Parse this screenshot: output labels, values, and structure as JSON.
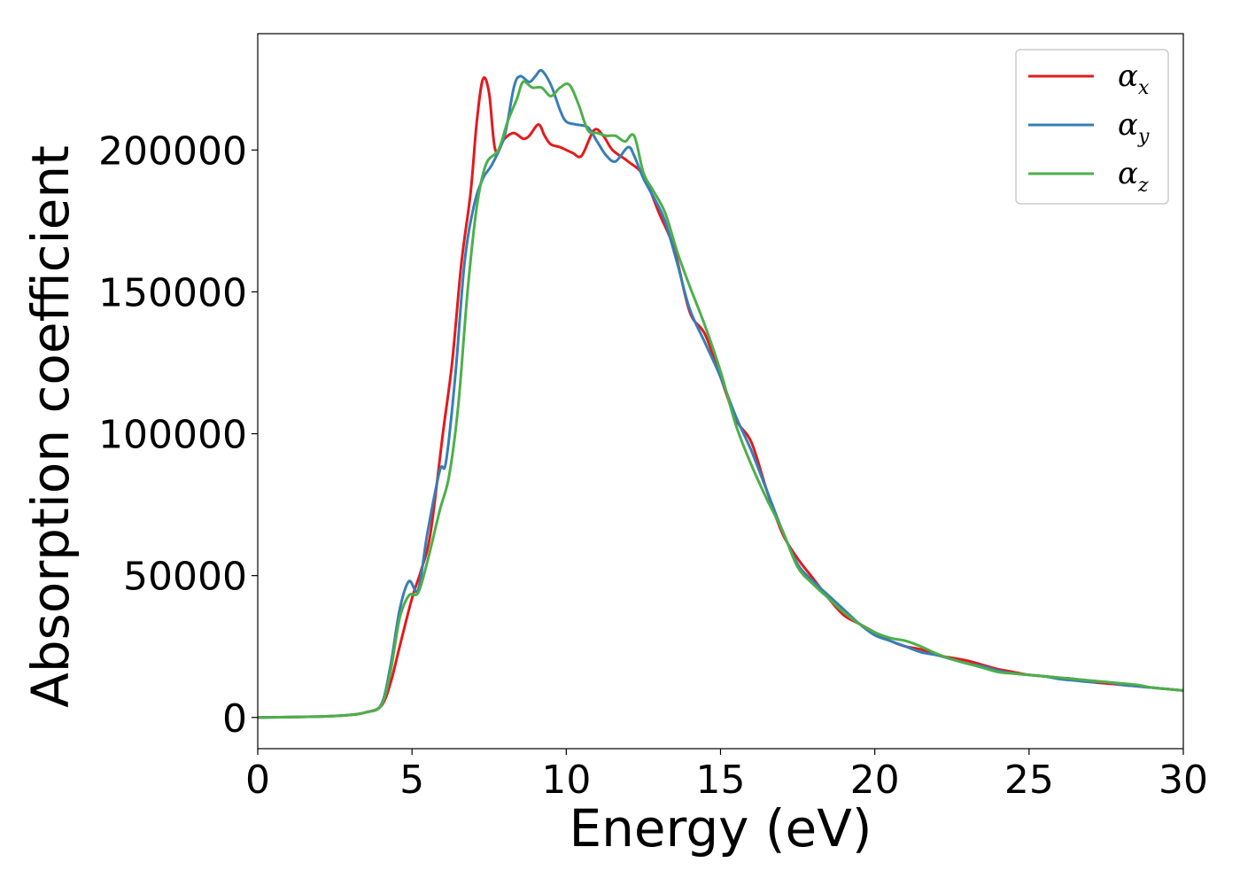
{
  "chart_data": {
    "type": "line",
    "xlabel": "Energy (eV)",
    "ylabel": "Absorption coefficient",
    "xlim": [
      0,
      30
    ],
    "ylim": [
      -11000,
      241000
    ],
    "x_ticks": [
      0,
      5,
      10,
      15,
      20,
      25,
      30
    ],
    "y_ticks": [
      0,
      50000,
      100000,
      150000,
      200000
    ],
    "legend_position": "top-right",
    "grid": false,
    "series": [
      {
        "name": "αx",
        "symbol": "α",
        "subscript": "x",
        "color": "#e41a1c",
        "points": [
          [
            0,
            0
          ],
          [
            2,
            300
          ],
          [
            3,
            900
          ],
          [
            3.5,
            1800
          ],
          [
            4,
            4000
          ],
          [
            4.3,
            12000
          ],
          [
            4.6,
            25000
          ],
          [
            5.0,
            42000
          ],
          [
            5.3,
            52000
          ],
          [
            5.6,
            65000
          ],
          [
            6.0,
            100000
          ],
          [
            6.3,
            125000
          ],
          [
            6.6,
            160000
          ],
          [
            6.9,
            185000
          ],
          [
            7.1,
            210000
          ],
          [
            7.3,
            225000
          ],
          [
            7.5,
            220000
          ],
          [
            7.7,
            200000
          ],
          [
            8.0,
            204000
          ],
          [
            8.3,
            206000
          ],
          [
            8.6,
            204000
          ],
          [
            8.8,
            205000
          ],
          [
            9.1,
            209000
          ],
          [
            9.3,
            205000
          ],
          [
            9.5,
            202000
          ],
          [
            9.8,
            201000
          ],
          [
            10.2,
            199000
          ],
          [
            10.5,
            198000
          ],
          [
            10.9,
            207000
          ],
          [
            11.2,
            205000
          ],
          [
            11.5,
            200000
          ],
          [
            12.0,
            196000
          ],
          [
            12.5,
            191000
          ],
          [
            13.0,
            178000
          ],
          [
            13.5,
            165000
          ],
          [
            14.0,
            143000
          ],
          [
            14.5,
            135000
          ],
          [
            15.0,
            120000
          ],
          [
            15.5,
            105000
          ],
          [
            16.0,
            97000
          ],
          [
            16.5,
            80000
          ],
          [
            17.0,
            65000
          ],
          [
            17.5,
            56000
          ],
          [
            18.0,
            49000
          ],
          [
            18.5,
            42000
          ],
          [
            19.0,
            36000
          ],
          [
            19.5,
            33000
          ],
          [
            20.0,
            30000
          ],
          [
            20.5,
            27000
          ],
          [
            21.0,
            25000
          ],
          [
            21.5,
            24000
          ],
          [
            22.0,
            22000
          ],
          [
            22.5,
            21000
          ],
          [
            23.0,
            20000
          ],
          [
            23.5,
            18500
          ],
          [
            24.0,
            17000
          ],
          [
            24.5,
            16000
          ],
          [
            25.0,
            15000
          ],
          [
            25.5,
            14500
          ],
          [
            26.0,
            14000
          ],
          [
            26.5,
            13500
          ],
          [
            27.0,
            12500
          ],
          [
            27.5,
            12000
          ],
          [
            28.0,
            11500
          ],
          [
            28.5,
            11000
          ],
          [
            29.0,
            10500
          ],
          [
            29.5,
            10000
          ],
          [
            30.0,
            9500
          ]
        ]
      },
      {
        "name": "αy",
        "symbol": "α",
        "subscript": "y",
        "color": "#377eb8",
        "points": [
          [
            0,
            0
          ],
          [
            2,
            300
          ],
          [
            3,
            900
          ],
          [
            3.5,
            1800
          ],
          [
            4,
            4500
          ],
          [
            4.3,
            18000
          ],
          [
            4.6,
            38000
          ],
          [
            4.9,
            48000
          ],
          [
            5.2,
            45000
          ],
          [
            5.5,
            65000
          ],
          [
            5.9,
            87000
          ],
          [
            6.1,
            90000
          ],
          [
            6.4,
            120000
          ],
          [
            6.7,
            160000
          ],
          [
            7.0,
            180000
          ],
          [
            7.3,
            190000
          ],
          [
            7.6,
            195000
          ],
          [
            8.0,
            205000
          ],
          [
            8.3,
            222000
          ],
          [
            8.5,
            226000
          ],
          [
            8.8,
            224000
          ],
          [
            9.0,
            226000
          ],
          [
            9.2,
            228000
          ],
          [
            9.5,
            223000
          ],
          [
            9.8,
            214000
          ],
          [
            10.0,
            210000
          ],
          [
            10.3,
            209000
          ],
          [
            10.7,
            208000
          ],
          [
            11.0,
            203000
          ],
          [
            11.3,
            198000
          ],
          [
            11.6,
            196000
          ],
          [
            12.0,
            201000
          ],
          [
            12.2,
            198000
          ],
          [
            12.5,
            190000
          ],
          [
            12.9,
            182000
          ],
          [
            13.2,
            175000
          ],
          [
            13.6,
            160000
          ],
          [
            14.0,
            144000
          ],
          [
            14.5,
            132000
          ],
          [
            15.0,
            120000
          ],
          [
            15.5,
            106000
          ],
          [
            16.0,
            94000
          ],
          [
            16.5,
            80000
          ],
          [
            17.0,
            66000
          ],
          [
            17.5,
            54000
          ],
          [
            18.0,
            48000
          ],
          [
            18.5,
            43000
          ],
          [
            19.0,
            38000
          ],
          [
            19.5,
            33000
          ],
          [
            20.0,
            29000
          ],
          [
            20.5,
            27000
          ],
          [
            21.0,
            25000
          ],
          [
            21.5,
            23000
          ],
          [
            22.0,
            22000
          ],
          [
            22.5,
            20500
          ],
          [
            23.0,
            19000
          ],
          [
            23.5,
            18000
          ],
          [
            24.0,
            16500
          ],
          [
            24.5,
            15500
          ],
          [
            25.0,
            15000
          ],
          [
            25.5,
            14500
          ],
          [
            26.0,
            13500
          ],
          [
            26.5,
            13000
          ],
          [
            27.0,
            12500
          ],
          [
            27.5,
            12500
          ],
          [
            28.0,
            11500
          ],
          [
            28.5,
            11000
          ],
          [
            29.0,
            10500
          ],
          [
            29.5,
            10000
          ],
          [
            30.0,
            9500
          ]
        ]
      },
      {
        "name": "αz",
        "symbol": "α",
        "subscript": "z",
        "color": "#4daf4a",
        "points": [
          [
            0,
            0
          ],
          [
            2,
            300
          ],
          [
            3,
            900
          ],
          [
            3.5,
            1800
          ],
          [
            4,
            4200
          ],
          [
            4.3,
            16000
          ],
          [
            4.6,
            35000
          ],
          [
            4.9,
            43000
          ],
          [
            5.2,
            44000
          ],
          [
            5.5,
            55000
          ],
          [
            5.9,
            73000
          ],
          [
            6.2,
            85000
          ],
          [
            6.5,
            110000
          ],
          [
            6.8,
            150000
          ],
          [
            7.1,
            180000
          ],
          [
            7.4,
            195000
          ],
          [
            7.8,
            200000
          ],
          [
            8.1,
            210000
          ],
          [
            8.4,
            218000
          ],
          [
            8.6,
            224000
          ],
          [
            8.9,
            222000
          ],
          [
            9.2,
            222000
          ],
          [
            9.5,
            219000
          ],
          [
            9.8,
            222000
          ],
          [
            10.1,
            223000
          ],
          [
            10.4,
            216000
          ],
          [
            10.7,
            207000
          ],
          [
            11.0,
            206000
          ],
          [
            11.3,
            205000
          ],
          [
            11.6,
            205000
          ],
          [
            11.9,
            203000
          ],
          [
            12.2,
            205000
          ],
          [
            12.5,
            192000
          ],
          [
            12.8,
            186000
          ],
          [
            13.2,
            178000
          ],
          [
            13.6,
            164000
          ],
          [
            14.0,
            152000
          ],
          [
            14.5,
            138000
          ],
          [
            15.0,
            122000
          ],
          [
            15.5,
            103000
          ],
          [
            16.0,
            89000
          ],
          [
            16.5,
            77000
          ],
          [
            17.0,
            66000
          ],
          [
            17.5,
            53000
          ],
          [
            18.0,
            47000
          ],
          [
            18.5,
            42000
          ],
          [
            19.0,
            37000
          ],
          [
            19.5,
            33000
          ],
          [
            20.0,
            30000
          ],
          [
            20.5,
            28000
          ],
          [
            21.0,
            27000
          ],
          [
            21.5,
            25000
          ],
          [
            22.0,
            22500
          ],
          [
            22.5,
            20500
          ],
          [
            23.0,
            19000
          ],
          [
            23.5,
            17500
          ],
          [
            24.0,
            16000
          ],
          [
            24.5,
            15500
          ],
          [
            25.0,
            15000
          ],
          [
            25.5,
            14500
          ],
          [
            26.0,
            14000
          ],
          [
            26.5,
            13500
          ],
          [
            27.0,
            13000
          ],
          [
            27.5,
            12500
          ],
          [
            28.0,
            12000
          ],
          [
            28.5,
            11500
          ],
          [
            29.0,
            10500
          ],
          [
            29.5,
            10000
          ],
          [
            30.0,
            9500
          ]
        ]
      }
    ]
  }
}
